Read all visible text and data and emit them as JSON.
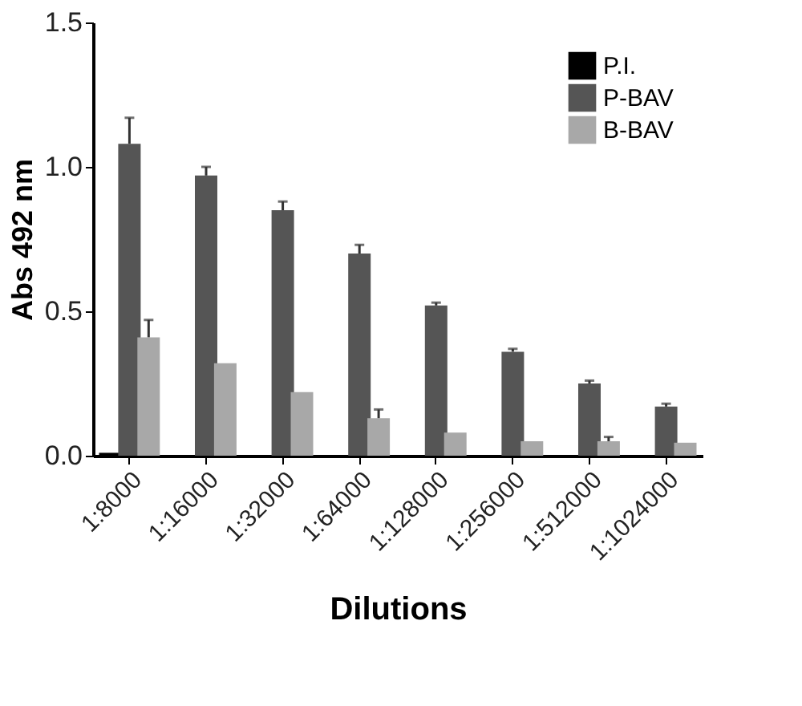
{
  "chart_data": {
    "type": "bar",
    "xlabel": "Dilutions",
    "ylabel": "Abs 492 nm",
    "categories": [
      "1:8000",
      "1:16000",
      "1:32000",
      "1:64000",
      "1:128000",
      "1:256000",
      "1:512000",
      "1:1024000"
    ],
    "series": [
      {
        "name": "P.I.",
        "color": "#000000",
        "values": [
          0.01,
          0,
          0,
          0,
          0,
          0,
          0,
          0
        ]
      },
      {
        "name": "P-BAV",
        "color": "#555555",
        "values": [
          1.08,
          0.97,
          0.85,
          0.7,
          0.52,
          0.36,
          0.25,
          0.17
        ],
        "errors": [
          [
            1.08,
            1.17
          ],
          [
            0.97,
            1.0
          ],
          [
            0.85,
            0.88
          ],
          [
            0.7,
            0.73
          ],
          [
            0.52,
            0.53
          ],
          [
            0.36,
            0.37
          ],
          [
            0.25,
            0.26
          ],
          [
            0.17,
            0.18
          ]
        ]
      },
      {
        "name": "B-BAV",
        "color": "#a8a8a8",
        "values": [
          0.41,
          0.32,
          0.22,
          0.13,
          0.08,
          0.05,
          0.05,
          0.045
        ],
        "errors": [
          [
            0.41,
            0.47
          ],
          null,
          null,
          [
            0.13,
            0.16
          ],
          null,
          null,
          [
            0.05,
            0.065
          ],
          null
        ]
      }
    ],
    "ylim": [
      0,
      1.5
    ],
    "yticks": [
      {
        "value": 0,
        "label": "0.0"
      },
      0.5,
      {
        "value": 1,
        "label": "1.0"
      },
      1.5
    ],
    "grid": false,
    "legend": "top right"
  }
}
